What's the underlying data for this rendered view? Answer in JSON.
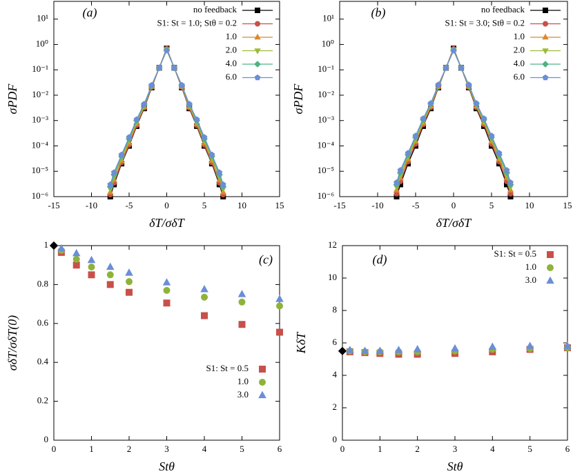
{
  "chart_data": [
    {
      "type": "line",
      "panel": "(a)",
      "ylabel": "σPDF",
      "xlabel": "δT/σδT",
      "log_y": true,
      "legend": "upper right",
      "xlim": [
        -15,
        15
      ],
      "xticks": [
        -15,
        -10,
        -5,
        0,
        5,
        10,
        15
      ],
      "ylim": [
        1e-06,
        50
      ],
      "yticks": [
        {
          "value": 1e-06,
          "label": "10⁻⁶"
        },
        {
          "value": 1e-05,
          "label": "10⁻⁵"
        },
        {
          "value": 0.0001,
          "label": "10⁻⁴"
        },
        {
          "value": 0.001,
          "label": "10⁻³"
        },
        {
          "value": 0.01,
          "label": "10⁻²"
        },
        {
          "value": 0.1,
          "label": "10⁻¹"
        },
        {
          "value": 1,
          "label": "10⁰"
        },
        {
          "value": 10,
          "label": "10¹"
        }
      ],
      "x": [
        -7.5,
        -7,
        -6,
        -5,
        -4,
        -3,
        -2,
        -1,
        0,
        1,
        2,
        3,
        4,
        5,
        6,
        7,
        7.5
      ],
      "series": [
        {
          "name": "no feedback",
          "color": "#000000",
          "marker": "square",
          "values": [
            1e-06,
            3e-06,
            2e-05,
            0.0001,
            0.0006,
            0.003,
            0.02,
            0.12,
            0.7,
            0.12,
            0.02,
            0.003,
            0.0006,
            0.0001,
            2e-05,
            3e-06,
            1e-06
          ]
        },
        {
          "name": "S1:  St = 1.0; Stθ = 0.2",
          "color": "#c8504a",
          "marker": "circle",
          "values": [
            1.2e-06,
            3.5e-06,
            2.2e-05,
            0.00011,
            0.00065,
            0.0032,
            0.021,
            0.12,
            0.68,
            0.12,
            0.021,
            0.0032,
            0.00065,
            0.00011,
            2.2e-05,
            3.5e-06,
            1.2e-06
          ]
        },
        {
          "name": "1.0",
          "color": "#d9892a",
          "marker": "triangle-up",
          "values": [
            1.5e-06,
            4.5e-06,
            2.6e-05,
            0.00013,
            0.00075,
            0.0035,
            0.022,
            0.12,
            0.65,
            0.12,
            0.022,
            0.0035,
            0.00075,
            0.00013,
            2.6e-05,
            4.5e-06,
            1.5e-06
          ]
        },
        {
          "name": "2.0",
          "color": "#9bbb3a",
          "marker": "triangle-down",
          "values": [
            2e-06,
            6e-06,
            3.2e-05,
            0.00016,
            0.00085,
            0.0038,
            0.023,
            0.12,
            0.62,
            0.12,
            0.023,
            0.0038,
            0.00085,
            0.00016,
            3.2e-05,
            6e-06,
            2e-06
          ]
        },
        {
          "name": "4.0",
          "color": "#4db383",
          "marker": "diamond",
          "values": [
            2.5e-06,
            7.5e-06,
            4e-05,
            0.00019,
            0.001,
            0.0042,
            0.024,
            0.12,
            0.6,
            0.12,
            0.024,
            0.0042,
            0.001,
            0.00019,
            4e-05,
            7.5e-06,
            2.5e-06
          ]
        },
        {
          "name": "6.0",
          "color": "#6b8ed6",
          "marker": "pentagon",
          "values": [
            3e-06,
            9e-06,
            4.5e-05,
            0.00022,
            0.0011,
            0.0045,
            0.025,
            0.12,
            0.58,
            0.12,
            0.025,
            0.0045,
            0.0011,
            0.00022,
            4.5e-05,
            9e-06,
            3e-06
          ]
        }
      ]
    },
    {
      "type": "line",
      "panel": "(b)",
      "ylabel": "σPDF",
      "xlabel": "δT/σδT",
      "log_y": true,
      "legend": "upper right",
      "xlim": [
        -15,
        15
      ],
      "xticks": [
        -15,
        -10,
        -5,
        0,
        5,
        10,
        15
      ],
      "ylim": [
        1e-06,
        50
      ],
      "yticks": [
        {
          "value": 1e-06,
          "label": "10⁻⁶"
        },
        {
          "value": 1e-05,
          "label": "10⁻⁵"
        },
        {
          "value": 0.0001,
          "label": "10⁻⁴"
        },
        {
          "value": 0.001,
          "label": "10⁻³"
        },
        {
          "value": 0.01,
          "label": "10⁻²"
        },
        {
          "value": 0.1,
          "label": "10⁻¹"
        },
        {
          "value": 1,
          "label": "10⁰"
        },
        {
          "value": 10,
          "label": "10¹"
        }
      ],
      "x": [
        -7.5,
        -7,
        -6,
        -5,
        -4,
        -3,
        -2,
        -1,
        0,
        1,
        2,
        3,
        4,
        5,
        6,
        7,
        7.5
      ],
      "series": [
        {
          "name": "no feedback",
          "color": "#000000",
          "marker": "square",
          "values": [
            1e-06,
            3e-06,
            2e-05,
            0.0001,
            0.0006,
            0.003,
            0.02,
            0.12,
            0.7,
            0.12,
            0.02,
            0.003,
            0.0006,
            0.0001,
            2e-05,
            3e-06,
            1e-06
          ]
        },
        {
          "name": "S1:  St = 3.0; Stθ = 0.2",
          "color": "#c8504a",
          "marker": "circle",
          "values": [
            1.3e-06,
            4e-06,
            2.4e-05,
            0.00012,
            0.0007,
            0.0033,
            0.021,
            0.12,
            0.67,
            0.12,
            0.021,
            0.0033,
            0.0007,
            0.00012,
            2.4e-05,
            4e-06,
            1.3e-06
          ]
        },
        {
          "name": "1.0",
          "color": "#d9892a",
          "marker": "triangle-up",
          "values": [
            1.8e-06,
            5.5e-06,
            3e-05,
            0.00015,
            0.0008,
            0.0037,
            0.022,
            0.12,
            0.64,
            0.12,
            0.022,
            0.0037,
            0.0008,
            0.00015,
            3e-05,
            5.5e-06,
            1.8e-06
          ]
        },
        {
          "name": "2.0",
          "color": "#9bbb3a",
          "marker": "triangle-down",
          "values": [
            2.4e-06,
            7e-06,
            3.7e-05,
            0.00018,
            0.0009,
            0.004,
            0.023,
            0.12,
            0.61,
            0.12,
            0.023,
            0.004,
            0.0009,
            0.00018,
            3.7e-05,
            7e-06,
            2.4e-06
          ]
        },
        {
          "name": "4.0",
          "color": "#4db383",
          "marker": "diamond",
          "values": [
            3e-06,
            9e-06,
            4.5e-05,
            0.00022,
            0.0011,
            0.0045,
            0.025,
            0.12,
            0.59,
            0.12,
            0.025,
            0.0045,
            0.0011,
            0.00022,
            4.5e-05,
            9e-06,
            3e-06
          ]
        },
        {
          "name": "6.0",
          "color": "#6b8ed6",
          "marker": "pentagon",
          "values": [
            3.6e-06,
            1.1e-05,
            5.2e-05,
            0.00025,
            0.0012,
            0.0048,
            0.026,
            0.12,
            0.57,
            0.12,
            0.026,
            0.0048,
            0.0012,
            0.00025,
            5.2e-05,
            1.1e-05,
            3.6e-06
          ]
        }
      ]
    },
    {
      "type": "scatter",
      "panel": "(c)",
      "ylabel": "σδT/σδT(0)",
      "xlabel": "Stθ",
      "legend": "lower right",
      "xlim": [
        0,
        6
      ],
      "xticks": [
        0,
        1,
        2,
        3,
        4,
        5,
        6
      ],
      "ylim": [
        0,
        1
      ],
      "yticks": [
        0,
        0.2,
        0.4,
        0.6,
        0.8,
        1
      ],
      "series": [
        {
          "color": "#000000",
          "marker": "diamond",
          "x": [
            0
          ],
          "values": [
            1
          ]
        },
        {
          "name": "S1:  St = 0.5",
          "color": "#c8504a",
          "marker": "square",
          "x": [
            0.2,
            0.6,
            1,
            1.5,
            2,
            3,
            4,
            5,
            6
          ],
          "values": [
            0.965,
            0.9,
            0.85,
            0.8,
            0.76,
            0.705,
            0.64,
            0.595,
            0.555
          ]
        },
        {
          "name": "1.0",
          "color": "#8fb33a",
          "marker": "circle",
          "x": [
            0.2,
            0.6,
            1,
            1.5,
            2,
            3,
            4,
            5,
            6
          ],
          "values": [
            0.975,
            0.93,
            0.89,
            0.85,
            0.815,
            0.77,
            0.735,
            0.71,
            0.69
          ]
        },
        {
          "name": "3.0",
          "color": "#6b8ed6",
          "marker": "triangle-up",
          "x": [
            0.2,
            0.6,
            1,
            1.5,
            2,
            3,
            4,
            5,
            6
          ],
          "values": [
            0.985,
            0.96,
            0.925,
            0.89,
            0.86,
            0.81,
            0.775,
            0.75,
            0.725
          ]
        }
      ]
    },
    {
      "type": "scatter",
      "panel": "(d)",
      "ylabel": "KδT",
      "xlabel": "Stθ",
      "legend": "upper right",
      "xlim": [
        0,
        6
      ],
      "xticks": [
        0,
        1,
        2,
        3,
        4,
        5,
        6
      ],
      "ylim": [
        0,
        12
      ],
      "yticks": [
        0,
        2,
        4,
        6,
        8,
        10,
        12
      ],
      "series": [
        {
          "color": "#000000",
          "marker": "diamond",
          "x": [
            0
          ],
          "values": [
            5.5
          ]
        },
        {
          "name": "S1:  St = 0.5",
          "color": "#c8504a",
          "marker": "square",
          "x": [
            0.2,
            0.6,
            1,
            1.5,
            2,
            3,
            4,
            5,
            6
          ],
          "values": [
            5.45,
            5.4,
            5.35,
            5.3,
            5.3,
            5.35,
            5.45,
            5.6,
            5.7
          ]
        },
        {
          "name": "1.0",
          "color": "#8fb33a",
          "marker": "circle",
          "x": [
            0.2,
            0.6,
            1,
            1.5,
            2,
            3,
            4,
            5,
            6
          ],
          "values": [
            5.5,
            5.45,
            5.45,
            5.45,
            5.45,
            5.5,
            5.6,
            5.65,
            5.7
          ]
        },
        {
          "name": "3.0",
          "color": "#6b8ed6",
          "marker": "triangle-up",
          "x": [
            0.2,
            0.6,
            1,
            1.5,
            2,
            3,
            4,
            5,
            6
          ],
          "values": [
            5.55,
            5.5,
            5.5,
            5.55,
            5.6,
            5.65,
            5.75,
            5.8,
            5.8
          ]
        }
      ]
    }
  ]
}
